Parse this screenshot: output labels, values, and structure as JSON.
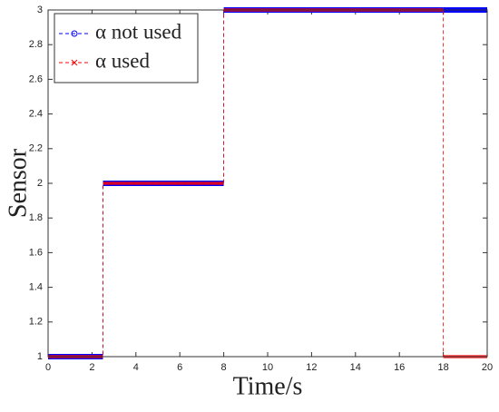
{
  "chart_data": {
    "type": "line",
    "xlabel": "Time/s",
    "ylabel": "Sensor",
    "x": [
      0,
      2.5,
      2.5,
      8,
      8,
      18,
      18,
      20
    ],
    "series": [
      {
        "name": "α not used",
        "color": "#0000ff",
        "values": [
          1,
          1,
          2,
          2,
          3,
          3,
          3,
          3
        ]
      },
      {
        "name": "α used",
        "color": "#ff0000",
        "values": [
          1,
          1,
          2,
          2,
          3,
          3,
          1,
          1
        ]
      }
    ],
    "xlim": [
      0,
      20
    ],
    "xticks": [
      0,
      2,
      4,
      6,
      8,
      10,
      12,
      14,
      16,
      18,
      20
    ],
    "ylim": [
      1,
      3
    ],
    "yticks": [
      1,
      1.2,
      1.4,
      1.6,
      1.8,
      2,
      2.2,
      2.4,
      2.6,
      2.8,
      3
    ],
    "legend": "upper left"
  }
}
